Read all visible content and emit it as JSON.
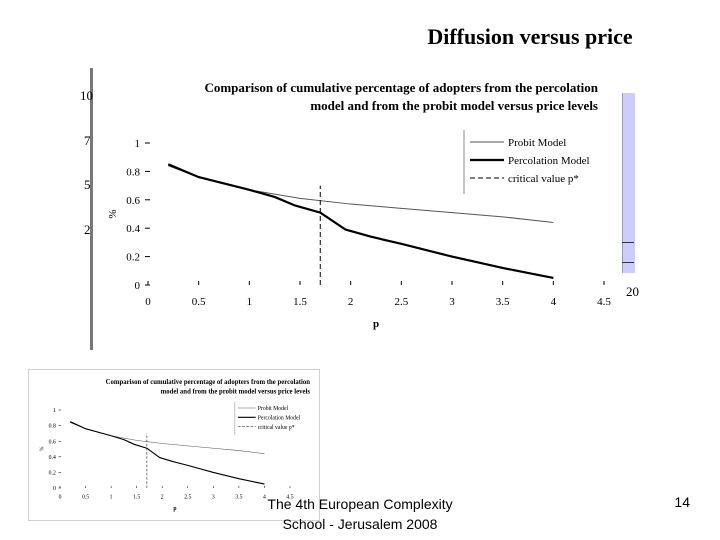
{
  "slide": {
    "title": "Diffusion versus price",
    "footer_line1": "The 4th European Complexity",
    "footer_line2": "School - Jerusalem 2008",
    "page_number": "14"
  },
  "background_chart": {
    "y_ticks": [
      "10",
      "7",
      "5",
      "2"
    ],
    "x_tick_right": "20",
    "panel_color": "#ccccff"
  },
  "chart_data": {
    "type": "line",
    "title_line1": "Comparison of cumulative percentage of adopters from the percolation",
    "title_line2": "model and from the probit model versus price levels",
    "xlabel": "p",
    "ylabel": "%",
    "xlim": [
      0,
      4.5
    ],
    "ylim": [
      0,
      1
    ],
    "x_ticks": [
      "0",
      "0.5",
      "1",
      "1.5",
      "2",
      "2.5",
      "3",
      "3.5",
      "4",
      "4.5"
    ],
    "y_ticks": [
      "0",
      "0.2",
      "0.4",
      "0.6",
      "0.8",
      "1"
    ],
    "legend_position": "top-right",
    "series": [
      {
        "name": "Probit Model",
        "style": "thin",
        "x": [
          0.2,
          0.5,
          1,
          1.5,
          2,
          2.5,
          3,
          3.5,
          4
        ],
        "y": [
          0.84,
          0.76,
          0.67,
          0.61,
          0.57,
          0.54,
          0.51,
          0.48,
          0.44
        ]
      },
      {
        "name": "Percolation Model",
        "style": "thick",
        "x": [
          0.2,
          0.5,
          1,
          1.25,
          1.45,
          1.7,
          1.95,
          2.2,
          2.5,
          3,
          3.5,
          4
        ],
        "y": [
          0.85,
          0.76,
          0.67,
          0.62,
          0.56,
          0.51,
          0.39,
          0.34,
          0.29,
          0.2,
          0.12,
          0.05
        ]
      },
      {
        "name": "critical value p*",
        "style": "dashed",
        "x": [
          1.7,
          1.7
        ],
        "y": [
          0,
          0.7
        ]
      }
    ]
  }
}
